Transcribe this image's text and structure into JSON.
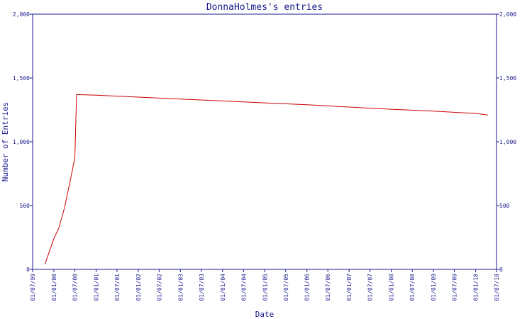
{
  "chart_data": {
    "type": "line",
    "title": "DonnaHolmes's entries",
    "xlabel": "Date",
    "ylabel": "Number of Entries",
    "ylim": [
      0,
      2000
    ],
    "y_ticks": [
      0,
      500,
      1000,
      1500,
      2000
    ],
    "y_tick_labels": [
      "0",
      "500",
      "1,000",
      "1,500",
      "2,000"
    ],
    "x_tick_labels": [
      "01/07/99",
      "01/01/00",
      "01/07/00",
      "01/01/01",
      "01/07/01",
      "01/01/02",
      "01/07/02",
      "01/01/03",
      "01/07/03",
      "01/01/04",
      "01/07/04",
      "01/01/05",
      "01/07/05",
      "01/01/06",
      "01/07/06",
      "01/01/07",
      "01/07/07",
      "01/01/08",
      "01/07/08",
      "01/01/09",
      "01/07/09",
      "01/01/10",
      "01/07/10"
    ],
    "grid": false,
    "series": [
      {
        "color": "#cc0000",
        "x": [
          "1999-10-15",
          "2000-01-01",
          "2000-02-15",
          "2000-04-01",
          "2000-06-01",
          "2000-07-01",
          "2000-07-15",
          "2001-01-01",
          "2002-01-01",
          "2003-01-01",
          "2004-01-01",
          "2005-01-01",
          "2006-01-01",
          "2007-01-01",
          "2008-01-01",
          "2009-01-01",
          "2010-01-01",
          "2010-04-15"
        ],
        "values": [
          40,
          240,
          330,
          480,
          740,
          880,
          1370,
          1365,
          1350,
          1335,
          1320,
          1305,
          1290,
          1272,
          1255,
          1240,
          1222,
          1210
        ]
      }
    ]
  },
  "colors": {
    "axis": "#1a1a8c",
    "line": "#cc0000",
    "background": "#ffffff"
  }
}
